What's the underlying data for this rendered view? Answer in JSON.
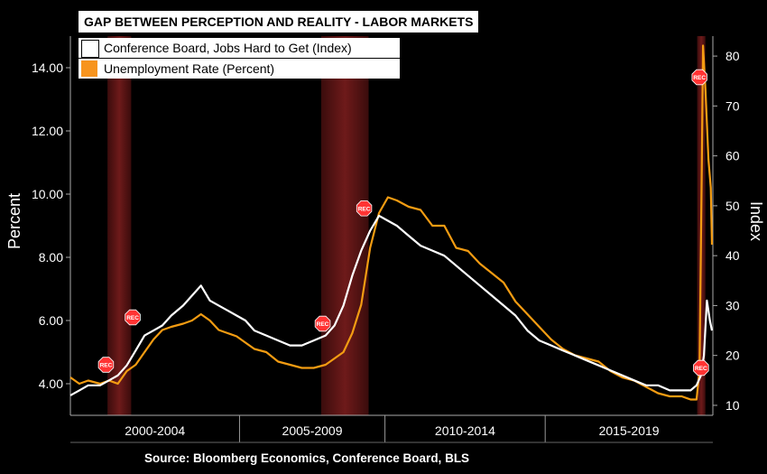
{
  "title": "GAP BETWEEN PERCEPTION AND REALITY - LABOR MARKETS",
  "legend": [
    {
      "label": "Conference Board, Jobs Hard to Get (Index)",
      "color": "#ffffff"
    },
    {
      "label": "Unemployment Rate (Percent)",
      "color": "#f7941d"
    }
  ],
  "source": "Source: Bloomberg Economics, Conference Board, BLS",
  "colors": {
    "background": "#000000",
    "recession": "#5a1414",
    "jobs": "#ffffff",
    "unemployment": "#f39c12",
    "rec_marker": "#ff3333"
  },
  "chart_data": {
    "type": "line",
    "title": "GAP BETWEEN PERCEPTION AND REALITY - LABOR MARKETS",
    "y_left": {
      "label": "Percent",
      "ticks": [
        "4.00",
        "6.00",
        "8.00",
        "10.00",
        "12.00",
        "14.00"
      ],
      "range": [
        3.0,
        15.0
      ]
    },
    "y_right": {
      "label": "Index",
      "ticks": [
        "10",
        "20",
        "30",
        "40",
        "50",
        "60",
        "70",
        "80"
      ],
      "range": [
        8,
        84
      ]
    },
    "x_range": [
      1999.0,
      2020.65
    ],
    "x_periods": [
      "2000-2004",
      "2005-2009",
      "2010-2014",
      "2015-2019"
    ],
    "period_bounds": [
      1999.0,
      2004.7,
      2009.6,
      2015.0,
      2020.65
    ],
    "recessions": [
      [
        2000.25,
        2001.05
      ],
      [
        2007.45,
        2009.05
      ],
      [
        2020.12,
        2020.4
      ]
    ],
    "rec_markers": [
      {
        "x": 2000.2,
        "y_pct": 4.6,
        "label": "REC"
      },
      {
        "x": 2001.1,
        "y_pct": 6.1,
        "label": "REC"
      },
      {
        "x": 2007.5,
        "y_pct": 5.9,
        "label": "REC"
      },
      {
        "x": 2008.9,
        "y_pct": 9.55,
        "label": "REC"
      },
      {
        "x": 2020.2,
        "y_pct": 13.7,
        "label": "REC"
      },
      {
        "x": 2020.25,
        "y_pct": 4.5,
        "label": "REC"
      }
    ],
    "series": [
      {
        "name": "Conference Board, Jobs Hard to Get (Index)",
        "axis": "right",
        "x": [
          1999.0,
          1999.3,
          1999.6,
          2000.0,
          2000.3,
          2000.6,
          2000.9,
          2001.2,
          2001.5,
          2001.8,
          2002.1,
          2002.4,
          2002.8,
          2003.1,
          2003.4,
          2003.7,
          2004.0,
          2004.3,
          2004.6,
          2004.9,
          2005.2,
          2005.6,
          2006.0,
          2006.4,
          2006.8,
          2007.2,
          2007.6,
          2007.9,
          2008.2,
          2008.5,
          2008.8,
          2009.1,
          2009.4,
          2009.7,
          2010.0,
          2010.4,
          2010.8,
          2011.2,
          2011.6,
          2012.0,
          2012.4,
          2012.8,
          2013.2,
          2013.6,
          2014.0,
          2014.4,
          2014.8,
          2015.2,
          2015.6,
          2016.0,
          2016.4,
          2016.8,
          2017.2,
          2017.6,
          2018.0,
          2018.4,
          2018.8,
          2019.2,
          2019.6,
          2019.9,
          2020.1,
          2020.25,
          2020.35,
          2020.45,
          2020.55,
          2020.62
        ],
        "values": [
          12,
          13,
          14,
          14,
          15,
          16,
          18,
          21,
          24,
          25,
          26,
          28,
          30,
          32,
          34,
          31,
          30,
          29,
          28,
          27,
          25,
          24,
          23,
          22,
          22,
          23,
          24,
          26,
          30,
          36,
          41,
          45,
          48,
          47,
          46,
          44,
          42,
          41,
          40,
          38,
          36,
          34,
          32,
          30,
          28,
          25,
          23,
          22,
          21,
          20,
          19,
          18,
          17,
          16,
          15,
          14,
          14,
          13,
          13,
          13,
          14,
          16,
          20,
          31,
          27,
          25
        ]
      },
      {
        "name": "Unemployment Rate (Percent)",
        "axis": "left",
        "x": [
          1999.0,
          1999.3,
          1999.6,
          2000.0,
          2000.3,
          2000.6,
          2000.9,
          2001.2,
          2001.5,
          2001.8,
          2002.1,
          2002.4,
          2002.8,
          2003.1,
          2003.4,
          2003.7,
          2004.0,
          2004.3,
          2004.6,
          2004.9,
          2005.2,
          2005.6,
          2006.0,
          2006.4,
          2006.8,
          2007.2,
          2007.6,
          2007.9,
          2008.2,
          2008.5,
          2008.8,
          2009.1,
          2009.4,
          2009.7,
          2010.0,
          2010.4,
          2010.8,
          2011.2,
          2011.6,
          2012.0,
          2012.4,
          2012.8,
          2013.2,
          2013.6,
          2014.0,
          2014.4,
          2014.8,
          2015.2,
          2015.6,
          2016.0,
          2016.4,
          2016.8,
          2017.2,
          2017.6,
          2018.0,
          2018.4,
          2018.8,
          2019.2,
          2019.6,
          2019.9,
          2020.1,
          2020.2,
          2020.28,
          2020.32,
          2020.4,
          2020.5,
          2020.58,
          2020.62
        ],
        "values": [
          4.2,
          4.0,
          4.1,
          4.0,
          4.1,
          4.0,
          4.4,
          4.6,
          5.0,
          5.4,
          5.7,
          5.8,
          5.9,
          6.0,
          6.2,
          6.0,
          5.7,
          5.6,
          5.5,
          5.3,
          5.1,
          5.0,
          4.7,
          4.6,
          4.5,
          4.5,
          4.6,
          4.8,
          5.0,
          5.6,
          6.5,
          8.3,
          9.4,
          9.9,
          9.8,
          9.6,
          9.5,
          9.0,
          9.0,
          8.3,
          8.2,
          7.8,
          7.5,
          7.2,
          6.6,
          6.2,
          5.8,
          5.4,
          5.1,
          4.9,
          4.8,
          4.7,
          4.4,
          4.2,
          4.1,
          3.9,
          3.7,
          3.6,
          3.6,
          3.5,
          3.5,
          4.4,
          11.0,
          14.7,
          13.3,
          11.1,
          10.2,
          8.4
        ]
      }
    ]
  }
}
